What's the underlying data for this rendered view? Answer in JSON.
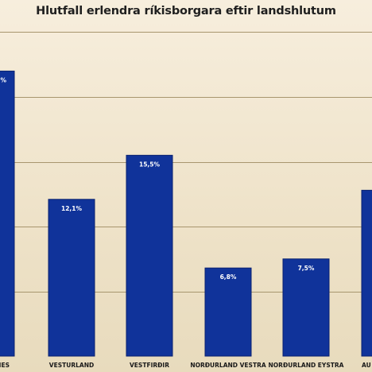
{
  "chart_data": {
    "type": "bar",
    "title": "Hlutfall erlendra ríkisborgara eftir landshlutum",
    "categories": [
      "SUÐURNES",
      "VESTURLAND",
      "VESTFIRÐIR",
      "NORÐURLAND VESTRA",
      "NORÐURLAND EYSTRA",
      "AUSTURLAND"
    ],
    "values": [
      22.0,
      12.1,
      15.5,
      6.8,
      7.5,
      12.8
    ],
    "value_labels": [
      "%",
      "12,1%",
      "15,5%",
      "6,8%",
      "7,5%",
      ""
    ],
    "category_labels": [
      "IES",
      "VESTURLAND",
      "VESTFIRÐIR",
      "NORÐURLAND VESTRA",
      "NORÐURLAND EYSTRA",
      "AU"
    ],
    "ylim": [
      0,
      25
    ],
    "grid": true,
    "colors": {
      "bar": "#10339a",
      "gridline": "#a8966e"
    }
  }
}
